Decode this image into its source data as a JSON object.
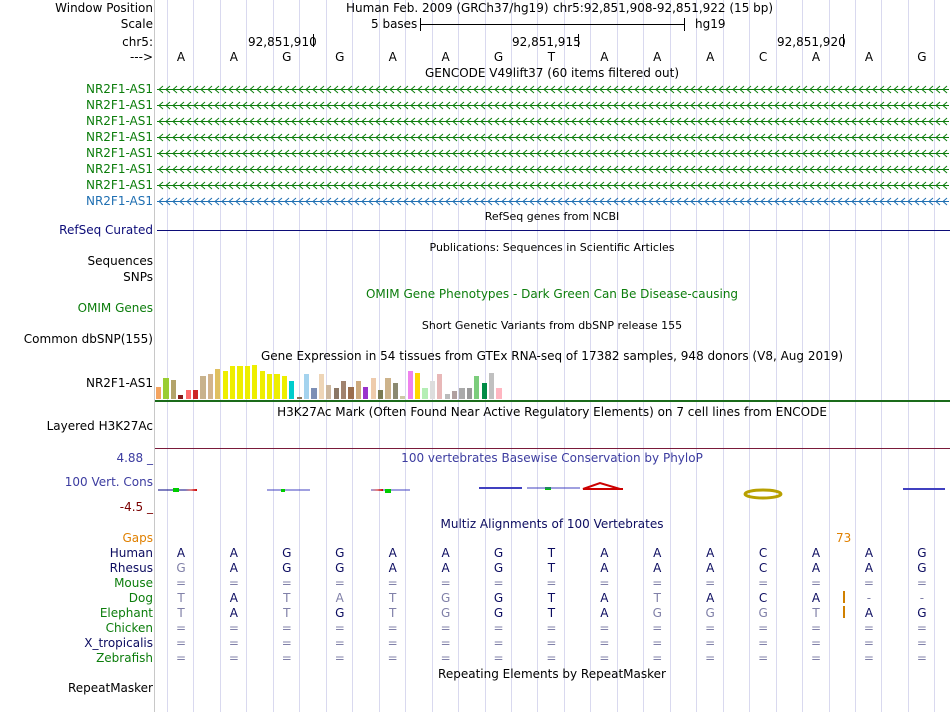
{
  "colors": {
    "gencode_green": "#0c7d0c",
    "gencode_blue": "#1f6fb2",
    "refseq_navy": "#0c0c78",
    "phylop_blue": "#3c3ca0",
    "phylop_dark": "#7a0000",
    "multiz_navy": "#0c0c60",
    "gaps_orange": "#e08000",
    "species_green": "#0c7d0c",
    "species_faded": "#8080a8",
    "grid": "#d9d9ef"
  },
  "header": {
    "window_position_label": "Window Position",
    "scale_label": "Scale",
    "chrom_label": "chr5:",
    "strand_label": "--->",
    "assembly": "Human Feb. 2009 (GRCh37/hg19)",
    "position": "chr5:92,851,908-92,851,922 (15 bp)",
    "scale_text": "5 bases",
    "db": "hg19",
    "coord_ticks": [
      "92,851,910",
      "92,851,915",
      "92,851,920"
    ]
  },
  "bases": [
    "A",
    "A",
    "G",
    "G",
    "A",
    "A",
    "G",
    "T",
    "A",
    "A",
    "A",
    "C",
    "A",
    "A",
    "G"
  ],
  "gencode": {
    "title": "GENCODE V49lift37 (60 items filtered out)",
    "rows": [
      {
        "name": "NR2F1-AS1",
        "selected": false
      },
      {
        "name": "NR2F1-AS1",
        "selected": false
      },
      {
        "name": "NR2F1-AS1",
        "selected": false
      },
      {
        "name": "NR2F1-AS1",
        "selected": false
      },
      {
        "name": "NR2F1-AS1",
        "selected": false
      },
      {
        "name": "NR2F1-AS1",
        "selected": false
      },
      {
        "name": "NR2F1-AS1",
        "selected": false
      },
      {
        "name": "NR2F1-AS1",
        "selected": true
      }
    ]
  },
  "refseq": {
    "title": "RefSeq genes from NCBI",
    "label": "RefSeq Curated"
  },
  "publications": {
    "title": "Publications: Sequences in Scientific Articles",
    "label1": "Sequences",
    "label2": "SNPs"
  },
  "omim": {
    "title": "OMIM Gene Phenotypes - Dark Green Can Be Disease-causing",
    "label": "OMIM Genes"
  },
  "dbsnp": {
    "title": "Short Genetic Variants from dbSNP release 155",
    "label": "Common dbSNP(155)"
  },
  "gtex": {
    "title": "Gene Expression in 54 tissues from GTEx RNA-seq of 17382 samples, 948 donors (V8, Aug 2019)",
    "label": "NR2F1-AS1",
    "bars": [
      {
        "v": 0.33,
        "c": "#f4a460"
      },
      {
        "v": 0.6,
        "c": "#9acd32"
      },
      {
        "v": 0.55,
        "c": "#b3a36a"
      },
      {
        "v": 0.12,
        "c": "#8b1a1a"
      },
      {
        "v": 0.25,
        "c": "#ff6a6a"
      },
      {
        "v": 0.25,
        "c": "#cd2626"
      },
      {
        "v": 0.65,
        "c": "#c8b28c"
      },
      {
        "v": 0.7,
        "c": "#d2b48c"
      },
      {
        "v": 0.85,
        "c": "#e0c060"
      },
      {
        "v": 0.8,
        "c": "#eeee00"
      },
      {
        "v": 0.95,
        "c": "#eeee00"
      },
      {
        "v": 0.95,
        "c": "#eeee00"
      },
      {
        "v": 0.95,
        "c": "#eeee00"
      },
      {
        "v": 0.98,
        "c": "#eeee00"
      },
      {
        "v": 0.8,
        "c": "#eeee00"
      },
      {
        "v": 0.7,
        "c": "#eeee00"
      },
      {
        "v": 0.7,
        "c": "#eeee00"
      },
      {
        "v": 0.65,
        "c": "#eeee00"
      },
      {
        "v": 0.5,
        "c": "#00cdcd"
      },
      {
        "v": 0.06,
        "c": "#8b7355"
      },
      {
        "v": 0.7,
        "c": "#a4d3ee"
      },
      {
        "v": 0.3,
        "c": "#7d8fb5"
      },
      {
        "v": 0.7,
        "c": "#eed5b7"
      },
      {
        "v": 0.4,
        "c": "#cdb79e"
      },
      {
        "v": 0.3,
        "c": "#8b7765"
      },
      {
        "v": 0.5,
        "c": "#a0826e"
      },
      {
        "v": 0.35,
        "c": "#9b6e4e"
      },
      {
        "v": 0.5,
        "c": "#cdaa7d"
      },
      {
        "v": 0.35,
        "c": "#9932cc"
      },
      {
        "v": 0.6,
        "c": "#eecbad"
      },
      {
        "v": 0.25,
        "c": "#7a7a52"
      },
      {
        "v": 0.6,
        "c": "#cdb38b"
      },
      {
        "v": 0.45,
        "c": "#8b8970"
      },
      {
        "v": 0.08,
        "c": "#cdc9a5"
      },
      {
        "v": 0.8,
        "c": "#ee82ee"
      },
      {
        "v": 0.75,
        "c": "#ffd700"
      },
      {
        "v": 0.3,
        "c": "#b4eeb4"
      },
      {
        "v": 0.5,
        "c": "#dddddd"
      },
      {
        "v": 0.7,
        "c": "#e8b8b8"
      },
      {
        "v": 0.15,
        "c": "#bbbbbb"
      },
      {
        "v": 0.22,
        "c": "#b0a0a0"
      },
      {
        "v": 0.3,
        "c": "#aaaaaa"
      },
      {
        "v": 0.3,
        "c": "#999999"
      },
      {
        "v": 0.65,
        "c": "#7ccd7c"
      },
      {
        "v": 0.45,
        "c": "#008b45"
      },
      {
        "v": 0.75,
        "c": "#c0c0c0"
      },
      {
        "v": 0.3,
        "c": "#ffb6c1"
      }
    ]
  },
  "h3k27ac": {
    "title": "H3K27Ac Mark (Often Found Near Active Regulatory Elements) on 7 cell lines from ENCODE",
    "label": "Layered H3K27Ac"
  },
  "phylop": {
    "title": "100 vertebrates Basewise Conservation by PhyloP",
    "label": "100 Vert. Cons",
    "max": "4.88 _",
    "min": "-4.5 _"
  },
  "multiz": {
    "title": "Multiz Alignments of 100 Vertebrates",
    "gaps_label": "Gaps",
    "gap_count": "73",
    "species": [
      {
        "name": "Human",
        "color": "#0c0c60",
        "seq": [
          "A",
          "A",
          "G",
          "G",
          "A",
          "A",
          "G",
          "T",
          "A",
          "A",
          "A",
          "C",
          "A",
          "A",
          "G"
        ],
        "faded": [
          0,
          0,
          0,
          0,
          0,
          0,
          0,
          0,
          0,
          0,
          0,
          0,
          0,
          0,
          0
        ]
      },
      {
        "name": "Rhesus",
        "color": "#0c0c60",
        "seq": [
          "G",
          "A",
          "G",
          "G",
          "A",
          "A",
          "G",
          "T",
          "A",
          "A",
          "A",
          "C",
          "A",
          "A",
          "G"
        ],
        "faded": [
          1,
          0,
          0,
          0,
          0,
          0,
          0,
          0,
          0,
          0,
          0,
          0,
          0,
          0,
          0
        ]
      },
      {
        "name": "Mouse",
        "color": "#0c7d0c",
        "seq": [
          "=",
          "=",
          "=",
          "=",
          "=",
          "=",
          "=",
          "=",
          "=",
          "=",
          "=",
          "=",
          "=",
          "=",
          "="
        ],
        "faded": [
          1,
          1,
          1,
          1,
          1,
          1,
          1,
          1,
          1,
          1,
          1,
          1,
          1,
          1,
          1
        ]
      },
      {
        "name": "Dog",
        "color": "#0c7d0c",
        "seq": [
          "T",
          "A",
          "T",
          "A",
          "T",
          "G",
          "G",
          "T",
          "A",
          "T",
          "A",
          "C",
          "A",
          "-",
          "-"
        ],
        "faded": [
          1,
          0,
          1,
          1,
          1,
          1,
          0,
          0,
          0,
          1,
          0,
          0,
          0,
          1,
          1
        ]
      },
      {
        "name": "Elephant",
        "color": "#0c7d0c",
        "seq": [
          "T",
          "A",
          "T",
          "G",
          "T",
          "G",
          "G",
          "T",
          "A",
          "G",
          "G",
          "G",
          "T",
          "A",
          "G"
        ],
        "faded": [
          1,
          0,
          1,
          0,
          1,
          1,
          0,
          0,
          0,
          1,
          1,
          1,
          1,
          0,
          0
        ]
      },
      {
        "name": "Chicken",
        "color": "#0c7d0c",
        "seq": [
          "=",
          "=",
          "=",
          "=",
          "=",
          "=",
          "=",
          "=",
          "=",
          "=",
          "=",
          "=",
          "=",
          "=",
          "="
        ],
        "faded": [
          1,
          1,
          1,
          1,
          1,
          1,
          1,
          1,
          1,
          1,
          1,
          1,
          1,
          1,
          1
        ]
      },
      {
        "name": "X_tropicalis",
        "color": "#0c0c60",
        "seq": [
          "=",
          "=",
          "=",
          "=",
          "=",
          "=",
          "=",
          "=",
          "=",
          "=",
          "=",
          "=",
          "=",
          "=",
          "="
        ],
        "faded": [
          1,
          1,
          1,
          1,
          1,
          1,
          1,
          1,
          1,
          1,
          1,
          1,
          1,
          1,
          1
        ]
      },
      {
        "name": "Zebrafish",
        "color": "#0c7d0c",
        "seq": [
          "=",
          "=",
          "=",
          "=",
          "=",
          "=",
          "=",
          "=",
          "=",
          "=",
          "=",
          "=",
          "=",
          "=",
          "="
        ],
        "faded": [
          1,
          1,
          1,
          1,
          1,
          1,
          1,
          1,
          1,
          1,
          1,
          1,
          1,
          1,
          1
        ]
      }
    ]
  },
  "repeatmasker": {
    "title": "Repeating Elements by RepeatMasker",
    "label": "RepeatMasker"
  }
}
